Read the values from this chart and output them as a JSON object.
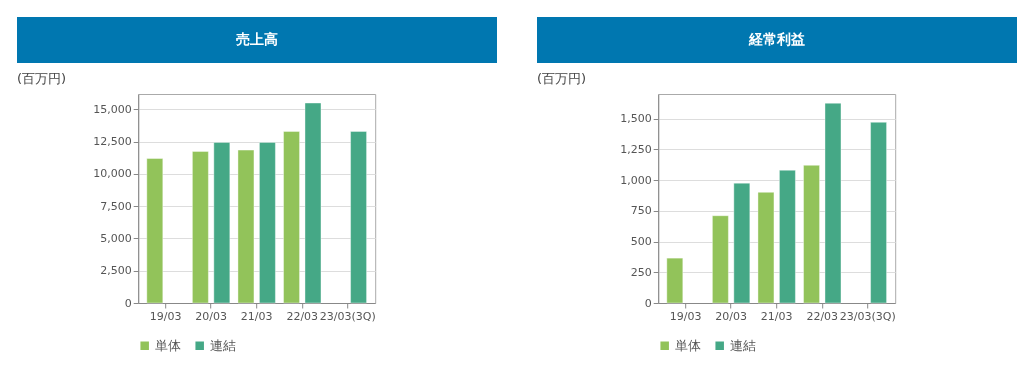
{
  "chart_data": [
    {
      "type": "bar",
      "title": "売上高",
      "annotations": [
        "(百万円)"
      ],
      "categories": [
        "19/03",
        "20/03",
        "21/03",
        "22/03",
        "23/03(3Q)"
      ],
      "series": [
        {
          "name": "単体",
          "color": "#92c35a",
          "values": [
            11200,
            11750,
            11850,
            13300,
            null
          ]
        },
        {
          "name": "連結",
          "color": "#45a886",
          "values": [
            null,
            12450,
            12450,
            15500,
            13300
          ]
        }
      ],
      "ylim": [
        0,
        16200
      ],
      "yticks": [
        0,
        {
          "value": 2500,
          "label": "2,500"
        },
        {
          "value": 5000,
          "label": "5,000"
        },
        {
          "value": 7500,
          "label": "7,500"
        },
        {
          "value": 10000,
          "label": "10,000"
        },
        {
          "value": 12500,
          "label": "12,500"
        },
        {
          "value": 15000,
          "label": "15,000"
        }
      ],
      "grid": "y",
      "legend": "bottom"
    },
    {
      "type": "bar",
      "title": "経常利益",
      "annotations": [
        "(百万円)"
      ],
      "categories": [
        "19/03",
        "20/03",
        "21/03",
        "22/03",
        "23/03(3Q)"
      ],
      "series": [
        {
          "name": "単体",
          "color": "#92c35a",
          "values": [
            365,
            710,
            900,
            1120,
            null
          ]
        },
        {
          "name": "連結",
          "color": "#45a886",
          "values": [
            null,
            975,
            1080,
            1625,
            1470
          ]
        }
      ],
      "ylim": [
        0,
        1700
      ],
      "yticks": [
        0,
        250,
        500,
        750,
        {
          "value": 1000,
          "label": "1,000"
        },
        {
          "value": 1250,
          "label": "1,250"
        },
        {
          "value": 1500,
          "label": "1,500"
        }
      ],
      "grid": "y",
      "legend": "bottom"
    }
  ]
}
